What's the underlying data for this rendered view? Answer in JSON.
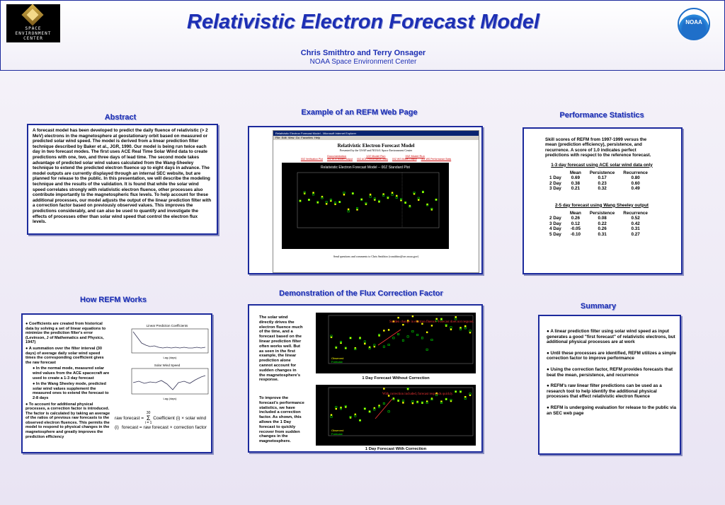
{
  "header": {
    "logo_left_text": [
      "SPACE",
      "ENVIRONMENT",
      "CENTER"
    ],
    "logo_right_text": "NOAA",
    "title": "Relativistic Electron Forecast Model",
    "authors": "Chris Smithtro and Terry Onsager",
    "organization": "NOAA Space Environment Center"
  },
  "abstract": {
    "heading": "Abstract",
    "text": "A forecast model has been developed to predict the daily fluence of relativistic (> 2 MeV) electrons in the magnetosphere at geostationary orbit based on measured or predicted solar wind speed. The model is derived from a linear prediction filter technique described by Baker et al., JGR, 1990. Our model is being run twice each day in two forecast modes. The first uses ACE Real Time Solar Wind data to create predictions with one, two, and three days of lead time. The second mode takes advantage of predicted solar wind values calculated from the Wang-Sheeley technique to extend the predicted electron fluence up to eight days in advance. The model outputs are currently displayed through an internal SEC website, but are planned for release to the public. In this presentation, we will describe the modeling technique and the results of the validation. It is found that while the solar wind speed correlates strongly with relativistic electron fluence, other processes also contribute importantly to the magnetospheric flux levels. To help account for these additional processes, our model adjusts the output of the linear prediction filter with a correction factor based on previously observed values. This improves the predictions considerably, and can also be used to quantify and investigate the effects of processes other than solar wind speed that control the electron flux levels."
  },
  "how": {
    "heading": "How REFM Works",
    "b1": "● Coefficients are created from historical data by solving a set of linear equations to minimize the prediction filter's error (Levinson, J of Mathematics and Physics, 1947)",
    "b2": "● A summation over the filter interval (30 days) of average daily solar wind speed times the corresponding coefficient gives the raw forecast",
    "b3": "● In the normal mode, measured solar wind values from the ACE spacecraft are used to create a 1-3 day forecast",
    "b4": "● In the Wang Sheeley mode, predicted solar wind values supplement the measured ones to extend the forecast to 2-8 days",
    "b5": "● To account for additional physical processes, a correction factor is introduced. The factor is calculated by taking an average of the ratios of previous raw forecasts to the observed electron fluences. This permits the model to respond to physical changes in the magnetosphere and greatly improves the prediction efficiency",
    "chart1_title": "Linear Prediction Coefficients",
    "chart1_xlabel": "Lag (days)",
    "chart1_ylabel": "Coefficient",
    "chart2_title": "Solar Wind Speed",
    "chart2_xlabel": "Lag (days)",
    "chart2_ylabel": "Daily Avg Solar Wind Speed (km/s)",
    "formula1_left": "raw forecast =",
    "formula1_right": "Coefficient (i) × solar wind (i)",
    "formula1_sigma": "Σ",
    "formula1_sub": "i = 1",
    "formula1_sup": "30",
    "formula2": "forecast = raw forecast × correction factor"
  },
  "example": {
    "heading": "Example of an REFM Web Page",
    "browser_title": "Relativistic Electron Forecast Model - Microsoft Internet Explorer",
    "menu": [
      "File",
      "Edit",
      "View",
      "Go",
      "Favorites",
      "Help"
    ],
    "page_title": "Relativistic Electron Forecast Model",
    "page_sub": "Presented by the USAF and NOAA/ Space Environment Center",
    "links_row1": [
      "Documentation",
      "12Z Model Run",
      "00Z Model Run"
    ],
    "links_row2": [
      "00Z Verification Plot",
      "00Z ACE Model Output",
      "00Z ACE Performance Stats",
      "00Z WS Model Output",
      "00Z WS Performance Stats"
    ],
    "plot_title": "Relativistic Electron Forecast Model -- 00Z Standard Plot",
    "footer": "Send questions and comments to Chris Smithtro (csmithtro@sec.noaa.gov)"
  },
  "performance": {
    "heading": "Performance Statistics",
    "intro": "Skill scores of REFM from 1997-1999 versus the mean (prediction efficiency), persistence, and recurrence. A score of 1.0 indicates perfect predictions with respect to the reference forecast.",
    "t1_title": "1-3 day forecast using ACE solar wind data only",
    "t2_title": "2-5 day forecast using Wang Sheeley output",
    "cols": [
      "",
      "Mean",
      "Persistence",
      "Recurrence"
    ],
    "t1_rows": [
      [
        "1 Day",
        "0.69",
        "0.17",
        "0.80"
      ],
      [
        "2 Day",
        "0.38",
        "0.23",
        "0.60"
      ],
      [
        "3 Day",
        "0.21",
        "0.32",
        "0.49"
      ]
    ],
    "t2_rows": [
      [
        "2 Day",
        "0.26",
        "0.08",
        "0.52"
      ],
      [
        "3 Day",
        "0.12",
        "0.22",
        "0.42"
      ],
      [
        "4 Day",
        "-0.05",
        "0.26",
        "0.31"
      ],
      [
        "5 Day",
        "-0.10",
        "0.31",
        "0.27"
      ]
    ]
  },
  "demo": {
    "heading": "Demonstration of the Flux Correction Factor",
    "text1": "The solar wind directly drives the electron fluence much of the time, and a forecast based on the linear prediction filter often works well. But as seen in the first example, the linear prediction alone cannot account for sudden changes in the magnetosphere's response.",
    "text2": "To improve the forecast's performance statistics, we have included a correction factor. As shown, this allows the 1 Day forecast to quickly recover from sudden changes in the magnetosphere.",
    "annot1": "Sudden change in electron fluence. Forecast does not respond.",
    "annot2": "With correction included, forecast responds quickly.",
    "caption1": "1 Day Forecast Without Correction",
    "caption2": "1 Day Forecast With Correction",
    "legend_obs": "Observed",
    "legend_fc": "Forecast"
  },
  "summary": {
    "heading": "Summary",
    "items": [
      "● A linear prediction filter using solar wind speed as input generates a good \"first forecast\" of relativistic electrons, but additional physical processes are at work",
      "● Until these processes are identified, REFM utilizes a simple correction factor to improve performance",
      "● Using the correction factor, REFM provides forecasts that beat the mean, persistence, and recurrence",
      "● REFM's raw linear filter predictions can be used as a research tool to help identify the additional physical processes that effect relativistic electron fluence",
      "● REFM is undergoing evaluation for release to the public via an SEC web page"
    ]
  },
  "colors": {
    "accent": "#1d2fb4",
    "border": "#1c2a9c",
    "plot_bg": "#000000",
    "observed": "#ffff00",
    "forecast": "#00ff00"
  }
}
